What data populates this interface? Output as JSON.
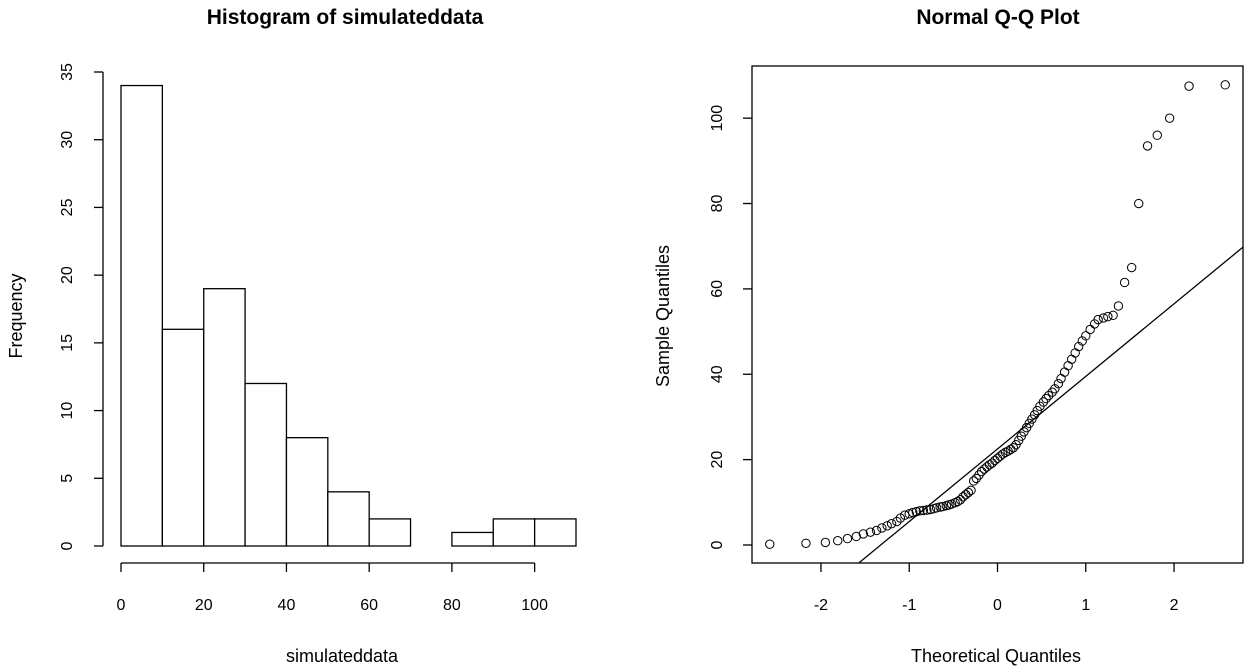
{
  "chart_data": [
    {
      "type": "bar",
      "title": "Histogram of simulateddata",
      "xlabel": "simulateddata",
      "ylabel": "Frequency",
      "bin_edges": [
        0,
        10,
        20,
        30,
        40,
        50,
        60,
        70,
        80,
        90,
        100,
        110
      ],
      "values": [
        34,
        16,
        19,
        12,
        8,
        4,
        2,
        0,
        1,
        2,
        2
      ],
      "xlim": [
        0,
        110
      ],
      "ylim": [
        0,
        35
      ],
      "x_ticks": [
        0,
        20,
        40,
        60,
        80,
        100
      ],
      "y_ticks": [
        0,
        5,
        10,
        15,
        20,
        25,
        30,
        35
      ],
      "grid": false
    },
    {
      "type": "scatter",
      "title": "Normal Q-Q Plot",
      "xlabel": "Theoretical Quantiles",
      "ylabel": "Sample Quantiles",
      "xlim": [
        -2.6,
        2.6
      ],
      "ylim": [
        0,
        108
      ],
      "x_ticks": [
        -2,
        -1,
        0,
        1,
        2
      ],
      "y_ticks": [
        0,
        20,
        40,
        60,
        80,
        100
      ],
      "grid": false,
      "reference_line": {
        "intercept": 22.5,
        "slope": 17
      },
      "points": {
        "x": [
          -2.58,
          -2.17,
          -1.95,
          -1.81,
          -1.7,
          -1.6,
          -1.52,
          -1.44,
          -1.37,
          -1.31,
          -1.25,
          -1.2,
          -1.14,
          -1.1,
          -1.05,
          -1.0,
          -0.96,
          -0.92,
          -0.88,
          -0.84,
          -0.8,
          -0.76,
          -0.72,
          -0.69,
          -0.65,
          -0.62,
          -0.58,
          -0.55,
          -0.52,
          -0.48,
          -0.45,
          -0.42,
          -0.39,
          -0.36,
          -0.33,
          -0.3,
          -0.27,
          -0.24,
          -0.21,
          -0.18,
          -0.15,
          -0.12,
          -0.09,
          -0.06,
          -0.03,
          0.0,
          0.03,
          0.06,
          0.09,
          0.12,
          0.15,
          0.18,
          0.21,
          0.24,
          0.27,
          0.3,
          0.33,
          0.36,
          0.39,
          0.42,
          0.45,
          0.48,
          0.52,
          0.55,
          0.58,
          0.62,
          0.65,
          0.69,
          0.72,
          0.76,
          0.8,
          0.84,
          0.88,
          0.92,
          0.96,
          1.0,
          1.05,
          1.1,
          1.14,
          1.2,
          1.25,
          1.31,
          1.37,
          1.44,
          1.52,
          1.6,
          1.7,
          1.81,
          1.95,
          2.17,
          2.58
        ],
        "y": [
          0.2,
          0.4,
          0.6,
          1.0,
          1.5,
          2.0,
          2.6,
          3.0,
          3.4,
          4.0,
          4.5,
          5.0,
          5.5,
          6.3,
          7.0,
          7.3,
          7.6,
          7.8,
          8.0,
          8.1,
          8.2,
          8.3,
          8.5,
          8.7,
          8.9,
          9.0,
          9.2,
          9.4,
          9.6,
          9.9,
          10.2,
          10.6,
          11.3,
          11.8,
          12.3,
          12.8,
          15.0,
          15.6,
          16.4,
          17.2,
          17.8,
          18.3,
          18.8,
          19.2,
          19.8,
          20.3,
          20.8,
          21.3,
          21.7,
          22.0,
          22.4,
          22.8,
          23.5,
          24.5,
          25.5,
          26.5,
          27.5,
          28.5,
          29.5,
          30.5,
          31.5,
          32.5,
          33.5,
          34.3,
          35.0,
          35.8,
          36.6,
          37.8,
          39.0,
          40.5,
          42.0,
          43.5,
          45.0,
          46.5,
          47.8,
          49.0,
          50.5,
          51.8,
          52.8,
          53.2,
          53.5,
          53.8,
          56.0,
          61.5,
          65.0,
          80.0,
          93.5,
          96.0,
          100.0,
          107.5,
          107.8
        ]
      }
    }
  ]
}
